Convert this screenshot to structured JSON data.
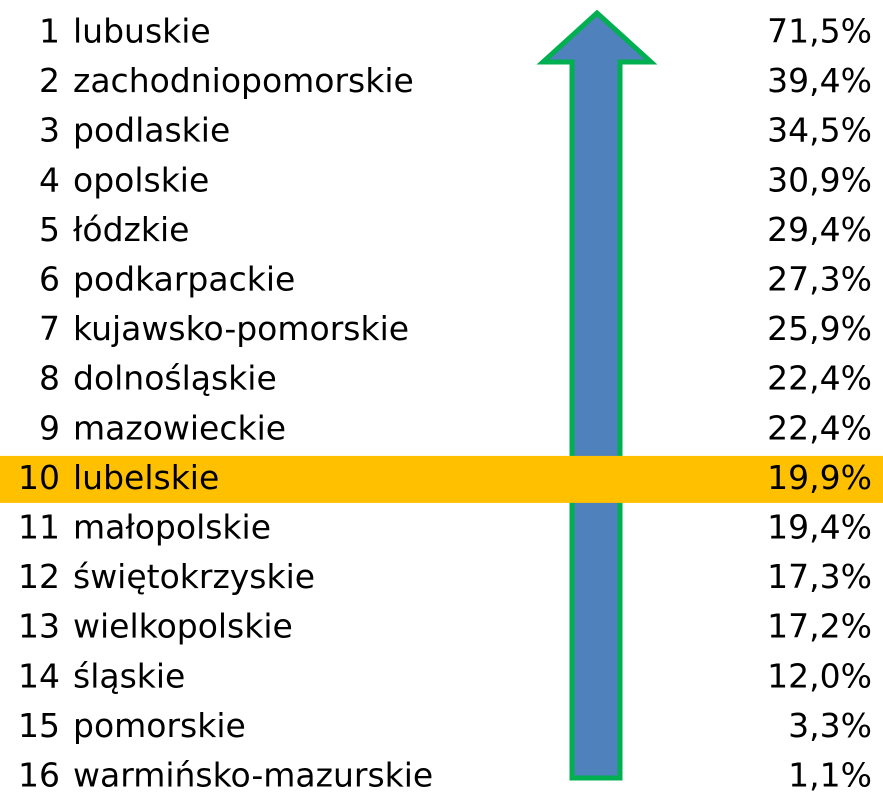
{
  "table": {
    "rows": [
      [
        "1",
        "lubuskie",
        "71,5%"
      ],
      [
        "2",
        "zachodniopomorskie",
        "39,4%"
      ],
      [
        "3",
        "podlaskie",
        "34,5%"
      ],
      [
        "4",
        "opolskie",
        "30,9%"
      ],
      [
        "5",
        "łódzkie",
        "29,4%"
      ],
      [
        "6",
        "podkarpackie",
        "27,3%"
      ],
      [
        "7",
        "kujawsko-pomorskie",
        "25,9%"
      ],
      [
        "8",
        "dolnośląskie",
        "22,4%"
      ],
      [
        "9",
        "mazowieckie",
        "22,4%"
      ],
      [
        "10",
        "lubelskie",
        "19,9%"
      ],
      [
        "11",
        "małopolskie",
        "19,4%"
      ],
      [
        "12",
        "świętokrzyskie",
        "17,3%"
      ],
      [
        "13",
        "wielkopolskie",
        "17,2%"
      ],
      [
        "14",
        "śląskie",
        "12,0%"
      ],
      [
        "15",
        "pomorskie",
        "3,3%"
      ],
      [
        "16",
        "warmińsko-mazurskie",
        "1,1%"
      ]
    ],
    "highlight_row": 9,
    "highlight_color": "#ffc000"
  }
}
